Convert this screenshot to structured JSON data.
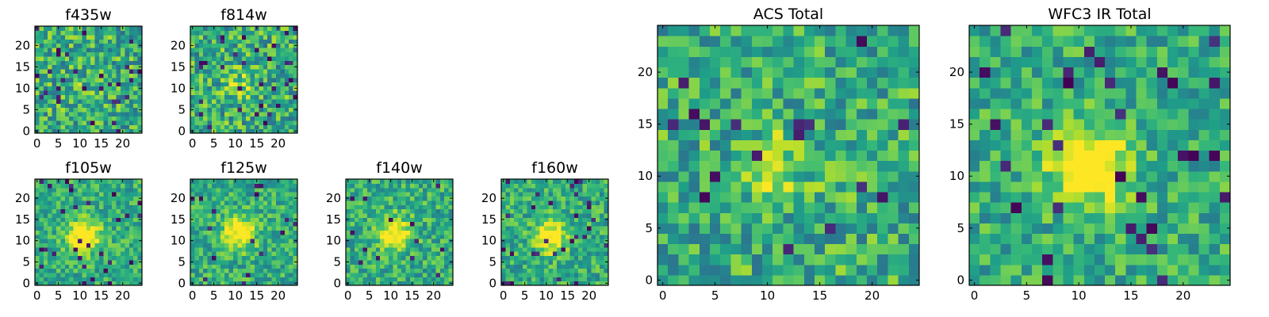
{
  "chart_data": [
    {
      "type": "heatmap",
      "title": "f435w",
      "xlim": [
        0,
        24
      ],
      "ylim": [
        0,
        24
      ],
      "xticks": [
        0,
        5,
        10,
        15,
        20
      ],
      "yticks": [
        0,
        5,
        10,
        15,
        20
      ],
      "source_peak": [
        11,
        11
      ],
      "source_strength": 0.05,
      "noise": 0.45,
      "dark_fraction": 0.04,
      "seed": 3
    },
    {
      "type": "heatmap",
      "title": "f814w",
      "xlim": [
        0,
        24
      ],
      "ylim": [
        0,
        24
      ],
      "xticks": [
        0,
        5,
        10,
        15,
        20
      ],
      "yticks": [
        0,
        5,
        10,
        15,
        20
      ],
      "source_peak": [
        11,
        11
      ],
      "source_strength": 0.2,
      "noise": 0.45,
      "dark_fraction": 0.04,
      "seed": 7
    },
    {
      "type": "heatmap",
      "title": "f105w",
      "xlim": [
        0,
        24
      ],
      "ylim": [
        0,
        24
      ],
      "xticks": [
        0,
        5,
        10,
        15,
        20
      ],
      "yticks": [
        0,
        5,
        10,
        15,
        20
      ],
      "source_peak": [
        11,
        11
      ],
      "source_strength": 0.55,
      "noise": 0.3,
      "dark_fraction": 0.04,
      "seed": 11
    },
    {
      "type": "heatmap",
      "title": "f125w",
      "xlim": [
        0,
        24
      ],
      "ylim": [
        0,
        24
      ],
      "xticks": [
        0,
        5,
        10,
        15,
        20
      ],
      "yticks": [
        0,
        5,
        10,
        15,
        20
      ],
      "source_peak": [
        11,
        12
      ],
      "source_strength": 0.5,
      "noise": 0.32,
      "dark_fraction": 0.03,
      "seed": 13
    },
    {
      "type": "heatmap",
      "title": "f140w",
      "xlim": [
        0,
        24
      ],
      "ylim": [
        0,
        24
      ],
      "xticks": [
        0,
        5,
        10,
        15,
        20
      ],
      "yticks": [
        0,
        5,
        10,
        15,
        20
      ],
      "source_peak": [
        11,
        12
      ],
      "source_strength": 0.45,
      "noise": 0.33,
      "dark_fraction": 0.02,
      "seed": 17
    },
    {
      "type": "heatmap",
      "title": "f160w",
      "xlim": [
        0,
        24
      ],
      "ylim": [
        0,
        24
      ],
      "xticks": [
        0,
        5,
        10,
        15,
        20
      ],
      "yticks": [
        0,
        5,
        10,
        15,
        20
      ],
      "source_peak": [
        11,
        11
      ],
      "source_strength": 0.5,
      "noise": 0.33,
      "dark_fraction": 0.05,
      "seed": 19
    },
    {
      "type": "heatmap",
      "title": "ACS Total",
      "xlim": [
        0,
        24
      ],
      "ylim": [
        0,
        24
      ],
      "xticks": [
        0,
        5,
        10,
        15,
        20
      ],
      "yticks": [
        0,
        5,
        10,
        15,
        20
      ],
      "source_peak": [
        11,
        11
      ],
      "source_strength": 0.2,
      "noise": 0.4,
      "dark_fraction": 0.025,
      "seed": 23
    },
    {
      "type": "heatmap",
      "title": "WFC3 IR Total",
      "xlim": [
        0,
        24
      ],
      "ylim": [
        0,
        24
      ],
      "xticks": [
        0,
        5,
        10,
        15,
        20
      ],
      "yticks": [
        0,
        5,
        10,
        15,
        20
      ],
      "source_peak": [
        11,
        11
      ],
      "source_strength": 0.55,
      "noise": 0.33,
      "dark_fraction": 0.04,
      "seed": 29
    }
  ],
  "colors": {
    "colormap": "viridis",
    "axes_frame": "#000000",
    "background": "#ffffff"
  }
}
